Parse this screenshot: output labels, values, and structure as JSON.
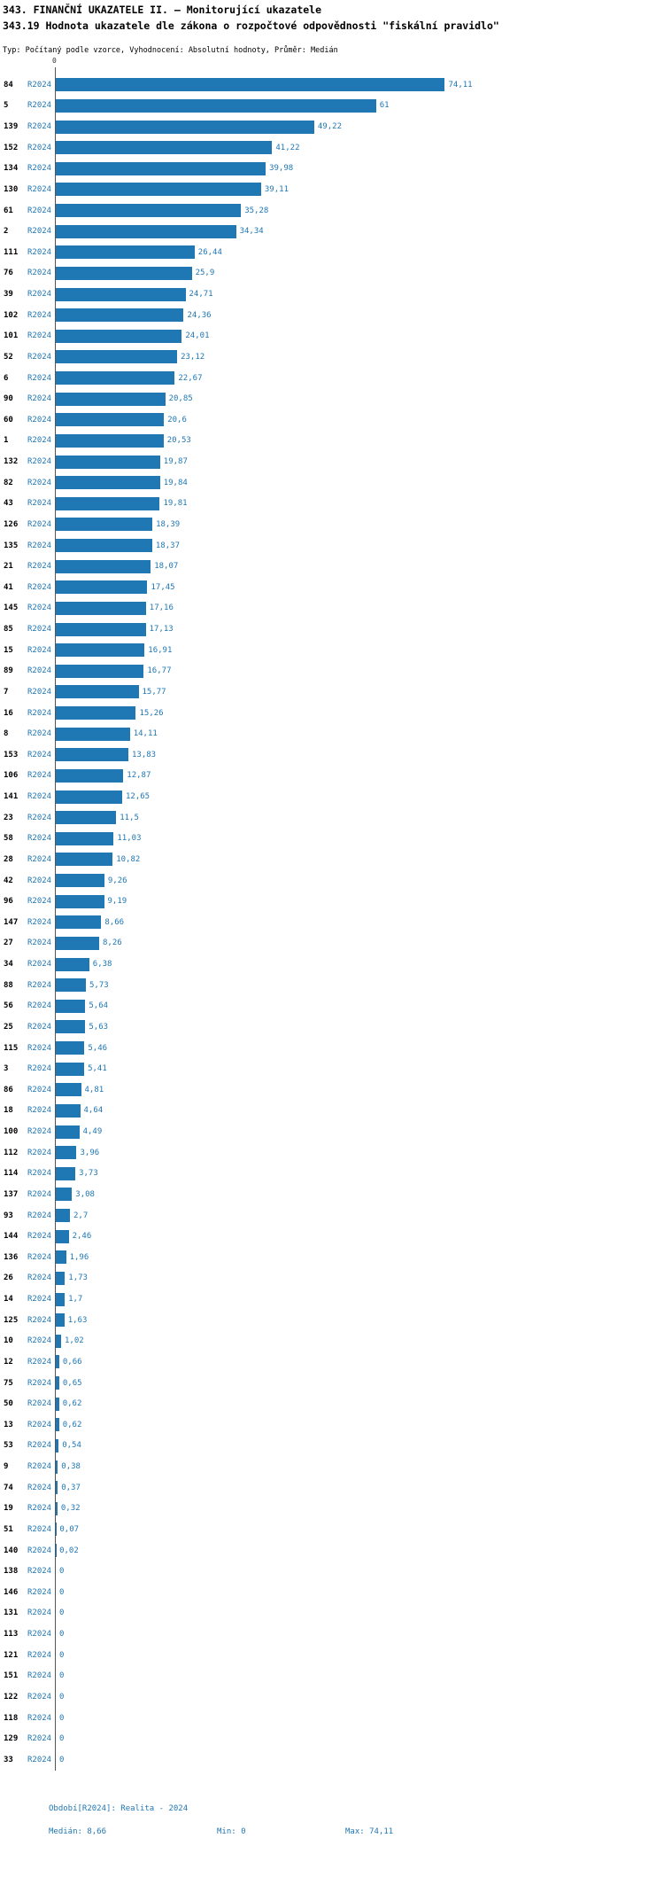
{
  "title": "343. FINANČNÍ UKAZATELE II. – Monitorující ukazatele",
  "subtitle": "343.19 Hodnota ukazatele dle zákona o rozpočtové odpovědnosti \"fiskální pravidlo\"",
  "meta": "Typ: Počítaný podle vzorce, Vyhodnocení: Absolutní hodnoty, Průměr: Medián",
  "axis": {
    "zero_label": "0"
  },
  "colors": {
    "bar": "#1F77B4",
    "text_blue": "#1F77B4",
    "axis_line": "#555555",
    "id_text": "#000000"
  },
  "footer": {
    "period": "Období[R2024]: Realita - 2024",
    "median": "Medián: 8,66",
    "min": "Min: 0",
    "max": "Max: 74,11"
  },
  "chart_data": {
    "type": "bar",
    "orientation": "horizontal",
    "title": "343.19 Hodnota ukazatele dle zákona o rozpočtové odpovědnosti \"fiskální pravidlo\"",
    "period_label": "R2024",
    "xlim": [
      0,
      78
    ],
    "legend": "none",
    "grid": false,
    "stats": {
      "median": 8.66,
      "min": 0,
      "max": 74.11
    },
    "rows": [
      {
        "id": "84",
        "value": 74.11,
        "label": "74,11"
      },
      {
        "id": "5",
        "value": 61,
        "label": "61"
      },
      {
        "id": "139",
        "value": 49.22,
        "label": "49,22"
      },
      {
        "id": "152",
        "value": 41.22,
        "label": "41,22"
      },
      {
        "id": "134",
        "value": 39.98,
        "label": "39,98"
      },
      {
        "id": "130",
        "value": 39.11,
        "label": "39,11"
      },
      {
        "id": "61",
        "value": 35.28,
        "label": "35,28"
      },
      {
        "id": "2",
        "value": 34.34,
        "label": "34,34"
      },
      {
        "id": "111",
        "value": 26.44,
        "label": "26,44"
      },
      {
        "id": "76",
        "value": 25.9,
        "label": "25,9"
      },
      {
        "id": "39",
        "value": 24.71,
        "label": "24,71"
      },
      {
        "id": "102",
        "value": 24.36,
        "label": "24,36"
      },
      {
        "id": "101",
        "value": 24.01,
        "label": "24,01"
      },
      {
        "id": "52",
        "value": 23.12,
        "label": "23,12"
      },
      {
        "id": "6",
        "value": 22.67,
        "label": "22,67"
      },
      {
        "id": "90",
        "value": 20.85,
        "label": "20,85"
      },
      {
        "id": "60",
        "value": 20.6,
        "label": "20,6"
      },
      {
        "id": "1",
        "value": 20.53,
        "label": "20,53"
      },
      {
        "id": "132",
        "value": 19.87,
        "label": "19,87"
      },
      {
        "id": "82",
        "value": 19.84,
        "label": "19,84"
      },
      {
        "id": "43",
        "value": 19.81,
        "label": "19,81"
      },
      {
        "id": "126",
        "value": 18.39,
        "label": "18,39"
      },
      {
        "id": "135",
        "value": 18.37,
        "label": "18,37"
      },
      {
        "id": "21",
        "value": 18.07,
        "label": "18,07"
      },
      {
        "id": "41",
        "value": 17.45,
        "label": "17,45"
      },
      {
        "id": "145",
        "value": 17.16,
        "label": "17,16"
      },
      {
        "id": "85",
        "value": 17.13,
        "label": "17,13"
      },
      {
        "id": "15",
        "value": 16.91,
        "label": "16,91"
      },
      {
        "id": "89",
        "value": 16.77,
        "label": "16,77"
      },
      {
        "id": "7",
        "value": 15.77,
        "label": "15,77"
      },
      {
        "id": "16",
        "value": 15.26,
        "label": "15,26"
      },
      {
        "id": "8",
        "value": 14.11,
        "label": "14,11"
      },
      {
        "id": "153",
        "value": 13.83,
        "label": "13,83"
      },
      {
        "id": "106",
        "value": 12.87,
        "label": "12,87"
      },
      {
        "id": "141",
        "value": 12.65,
        "label": "12,65"
      },
      {
        "id": "23",
        "value": 11.5,
        "label": "11,5"
      },
      {
        "id": "58",
        "value": 11.03,
        "label": "11,03"
      },
      {
        "id": "28",
        "value": 10.82,
        "label": "10,82"
      },
      {
        "id": "42",
        "value": 9.26,
        "label": "9,26"
      },
      {
        "id": "96",
        "value": 9.19,
        "label": "9,19"
      },
      {
        "id": "147",
        "value": 8.66,
        "label": "8,66"
      },
      {
        "id": "27",
        "value": 8.26,
        "label": "8,26"
      },
      {
        "id": "34",
        "value": 6.38,
        "label": "6,38"
      },
      {
        "id": "88",
        "value": 5.73,
        "label": "5,73"
      },
      {
        "id": "56",
        "value": 5.64,
        "label": "5,64"
      },
      {
        "id": "25",
        "value": 5.63,
        "label": "5,63"
      },
      {
        "id": "115",
        "value": 5.46,
        "label": "5,46"
      },
      {
        "id": "3",
        "value": 5.41,
        "label": "5,41"
      },
      {
        "id": "86",
        "value": 4.81,
        "label": "4,81"
      },
      {
        "id": "18",
        "value": 4.64,
        "label": "4,64"
      },
      {
        "id": "100",
        "value": 4.49,
        "label": "4,49"
      },
      {
        "id": "112",
        "value": 3.96,
        "label": "3,96"
      },
      {
        "id": "114",
        "value": 3.73,
        "label": "3,73"
      },
      {
        "id": "137",
        "value": 3.08,
        "label": "3,08"
      },
      {
        "id": "93",
        "value": 2.7,
        "label": "2,7"
      },
      {
        "id": "144",
        "value": 2.46,
        "label": "2,46"
      },
      {
        "id": "136",
        "value": 1.96,
        "label": "1,96"
      },
      {
        "id": "26",
        "value": 1.73,
        "label": "1,73"
      },
      {
        "id": "14",
        "value": 1.7,
        "label": "1,7"
      },
      {
        "id": "125",
        "value": 1.63,
        "label": "1,63"
      },
      {
        "id": "10",
        "value": 1.02,
        "label": "1,02"
      },
      {
        "id": "12",
        "value": 0.66,
        "label": "0,66"
      },
      {
        "id": "75",
        "value": 0.65,
        "label": "0,65"
      },
      {
        "id": "50",
        "value": 0.62,
        "label": "0,62"
      },
      {
        "id": "13",
        "value": 0.62,
        "label": "0,62"
      },
      {
        "id": "53",
        "value": 0.54,
        "label": "0,54"
      },
      {
        "id": "9",
        "value": 0.38,
        "label": "0,38"
      },
      {
        "id": "74",
        "value": 0.37,
        "label": "0,37"
      },
      {
        "id": "19",
        "value": 0.32,
        "label": "0,32"
      },
      {
        "id": "51",
        "value": 0.07,
        "label": "0,07"
      },
      {
        "id": "140",
        "value": 0.02,
        "label": "0,02"
      },
      {
        "id": "138",
        "value": 0,
        "label": "0"
      },
      {
        "id": "146",
        "value": 0,
        "label": "0"
      },
      {
        "id": "131",
        "value": 0,
        "label": "0"
      },
      {
        "id": "113",
        "value": 0,
        "label": "0"
      },
      {
        "id": "121",
        "value": 0,
        "label": "0"
      },
      {
        "id": "151",
        "value": 0,
        "label": "0"
      },
      {
        "id": "122",
        "value": 0,
        "label": "0"
      },
      {
        "id": "118",
        "value": 0,
        "label": "0"
      },
      {
        "id": "129",
        "value": 0,
        "label": "0"
      },
      {
        "id": "33",
        "value": 0,
        "label": "0"
      }
    ]
  }
}
